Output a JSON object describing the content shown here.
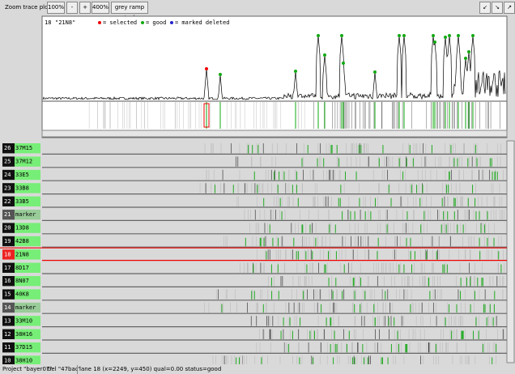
{
  "toolbar": {
    "label": "Zoom trace plot :",
    "buttons": [
      "100%",
      "-",
      "+",
      "400%",
      "grey ramp tool"
    ]
  },
  "trace": {
    "lane_number": 18,
    "lane_name": "\"21N8\"",
    "legend": [
      "= selected",
      "= good",
      "= marked deleted"
    ]
  },
  "lanes": [
    {
      "number": 26,
      "name": "37M15"
    },
    {
      "number": 25,
      "name": "37M12"
    },
    {
      "number": 24,
      "name": "33E5"
    },
    {
      "number": 23,
      "name": "33B8"
    },
    {
      "number": 22,
      "name": "33B5"
    },
    {
      "number": 21,
      "name": "marker"
    },
    {
      "number": 20,
      "name": "13D8"
    },
    {
      "number": 19,
      "name": "42B8"
    },
    {
      "number": 18,
      "name": "21N8"
    },
    {
      "number": 17,
      "name": "8D17"
    },
    {
      "number": 16,
      "name": "8N07"
    },
    {
      "number": 15,
      "name": "40K8"
    },
    {
      "number": 14,
      "name": "marker"
    },
    {
      "number": 13,
      "name": "33M10"
    },
    {
      "number": 12,
      "name": "38H16"
    },
    {
      "number": 11,
      "name": "37D15"
    },
    {
      "number": 10,
      "name": "38H10"
    }
  ],
  "status": {
    "project": "Project \"bayer07\"",
    "gel": "Gel \"47bac\"",
    "info": "lane 18 (x=2249, y=450) qual=0.00 status=good"
  }
}
